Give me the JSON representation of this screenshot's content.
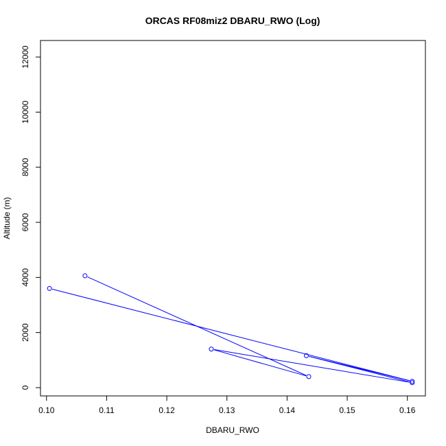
{
  "chart_data": {
    "type": "line",
    "title": "ORCAS RF08miz2 DBARU_RWO (Log)",
    "xlabel": "DBARU_RWO",
    "ylabel": "Altitude (m)",
    "xlim": [
      0.099,
      0.163
    ],
    "ylim": [
      -300,
      12600
    ],
    "x_ticks": [
      0.1,
      0.11,
      0.12,
      0.13,
      0.14,
      0.15,
      0.16
    ],
    "x_tick_labels": [
      "0.10",
      "0.11",
      "0.12",
      "0.13",
      "0.14",
      "0.15",
      "0.16"
    ],
    "y_ticks": [
      0,
      2000,
      4000,
      6000,
      8000,
      10000,
      12000
    ],
    "y_tick_labels": [
      "0",
      "2000",
      "4000",
      "6000",
      "8000",
      "10000",
      "12000"
    ],
    "grid": false,
    "series": [
      {
        "color": "#0000ff",
        "marker": "open-circle",
        "points": [
          {
            "x": 0.1064,
            "y": 4060
          },
          {
            "x": 0.1436,
            "y": 400
          },
          {
            "x": 0.1274,
            "y": 1400
          },
          {
            "x": 0.1608,
            "y": 180
          },
          {
            "x": 0.1432,
            "y": 1160
          },
          {
            "x": 0.1608,
            "y": 230
          },
          {
            "x": 0.1005,
            "y": 3600
          }
        ]
      }
    ]
  }
}
